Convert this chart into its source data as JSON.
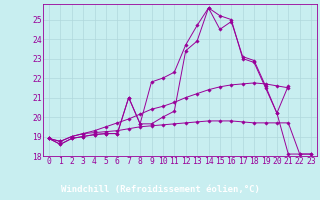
{
  "xlabel": "Windchill (Refroidissement éolien,°C)",
  "background_color": "#c8eef0",
  "axis_bar_color": "#7700aa",
  "line_color": "#990099",
  "grid_color": "#b0d8dc",
  "xlim": [
    -0.5,
    23.5
  ],
  "ylim": [
    18.0,
    25.8
  ],
  "yticks": [
    18,
    19,
    20,
    21,
    22,
    23,
    24,
    25
  ],
  "xticks": [
    0,
    1,
    2,
    3,
    4,
    5,
    6,
    7,
    8,
    9,
    10,
    11,
    12,
    13,
    14,
    15,
    16,
    17,
    18,
    19,
    20,
    21,
    22,
    23
  ],
  "series": [
    {
      "x": [
        0,
        1,
        2,
        3,
        4,
        5,
        6,
        7,
        8,
        9,
        10,
        11,
        12,
        13,
        14,
        15,
        16,
        17,
        18,
        19,
        20,
        21,
        22,
        23
      ],
      "y": [
        18.9,
        18.6,
        18.9,
        19.0,
        19.1,
        19.15,
        19.15,
        21.0,
        19.65,
        19.65,
        20.0,
        20.3,
        23.4,
        23.9,
        25.6,
        25.2,
        25.0,
        23.0,
        22.8,
        21.5,
        20.2,
        18.1,
        18.1,
        18.1
      ]
    },
    {
      "x": [
        0,
        1,
        2,
        3,
        4,
        5,
        6,
        7,
        8,
        9,
        10,
        11,
        12,
        13,
        14,
        15,
        16,
        17,
        18,
        19,
        20,
        21
      ],
      "y": [
        18.9,
        18.6,
        18.9,
        19.0,
        19.1,
        19.15,
        19.15,
        21.0,
        19.65,
        21.8,
        22.0,
        22.3,
        23.7,
        24.7,
        25.6,
        24.5,
        24.9,
        23.1,
        22.9,
        21.6,
        20.2,
        21.6
      ]
    },
    {
      "x": [
        0,
        1,
        2,
        3,
        4,
        5,
        6,
        7,
        8,
        9,
        10,
        11,
        12,
        13,
        14,
        15,
        16,
        17,
        18,
        19,
        20,
        21
      ],
      "y": [
        18.9,
        18.75,
        19.0,
        19.15,
        19.3,
        19.5,
        19.7,
        19.9,
        20.15,
        20.4,
        20.55,
        20.75,
        21.0,
        21.2,
        21.4,
        21.55,
        21.65,
        21.7,
        21.75,
        21.7,
        21.6,
        21.5
      ]
    },
    {
      "x": [
        0,
        1,
        2,
        3,
        4,
        5,
        6,
        7,
        8,
        9,
        10,
        11,
        12,
        13,
        14,
        15,
        16,
        17,
        18,
        19,
        20,
        21,
        22,
        23
      ],
      "y": [
        18.9,
        18.75,
        19.0,
        19.15,
        19.2,
        19.25,
        19.3,
        19.4,
        19.5,
        19.55,
        19.6,
        19.65,
        19.7,
        19.75,
        19.8,
        19.8,
        19.8,
        19.75,
        19.7,
        19.7,
        19.7,
        19.7,
        18.1,
        18.1
      ]
    }
  ],
  "xlabel_bg": "#660088",
  "xlabel_fontsize": 6.5,
  "tick_fontsize": 5.8
}
